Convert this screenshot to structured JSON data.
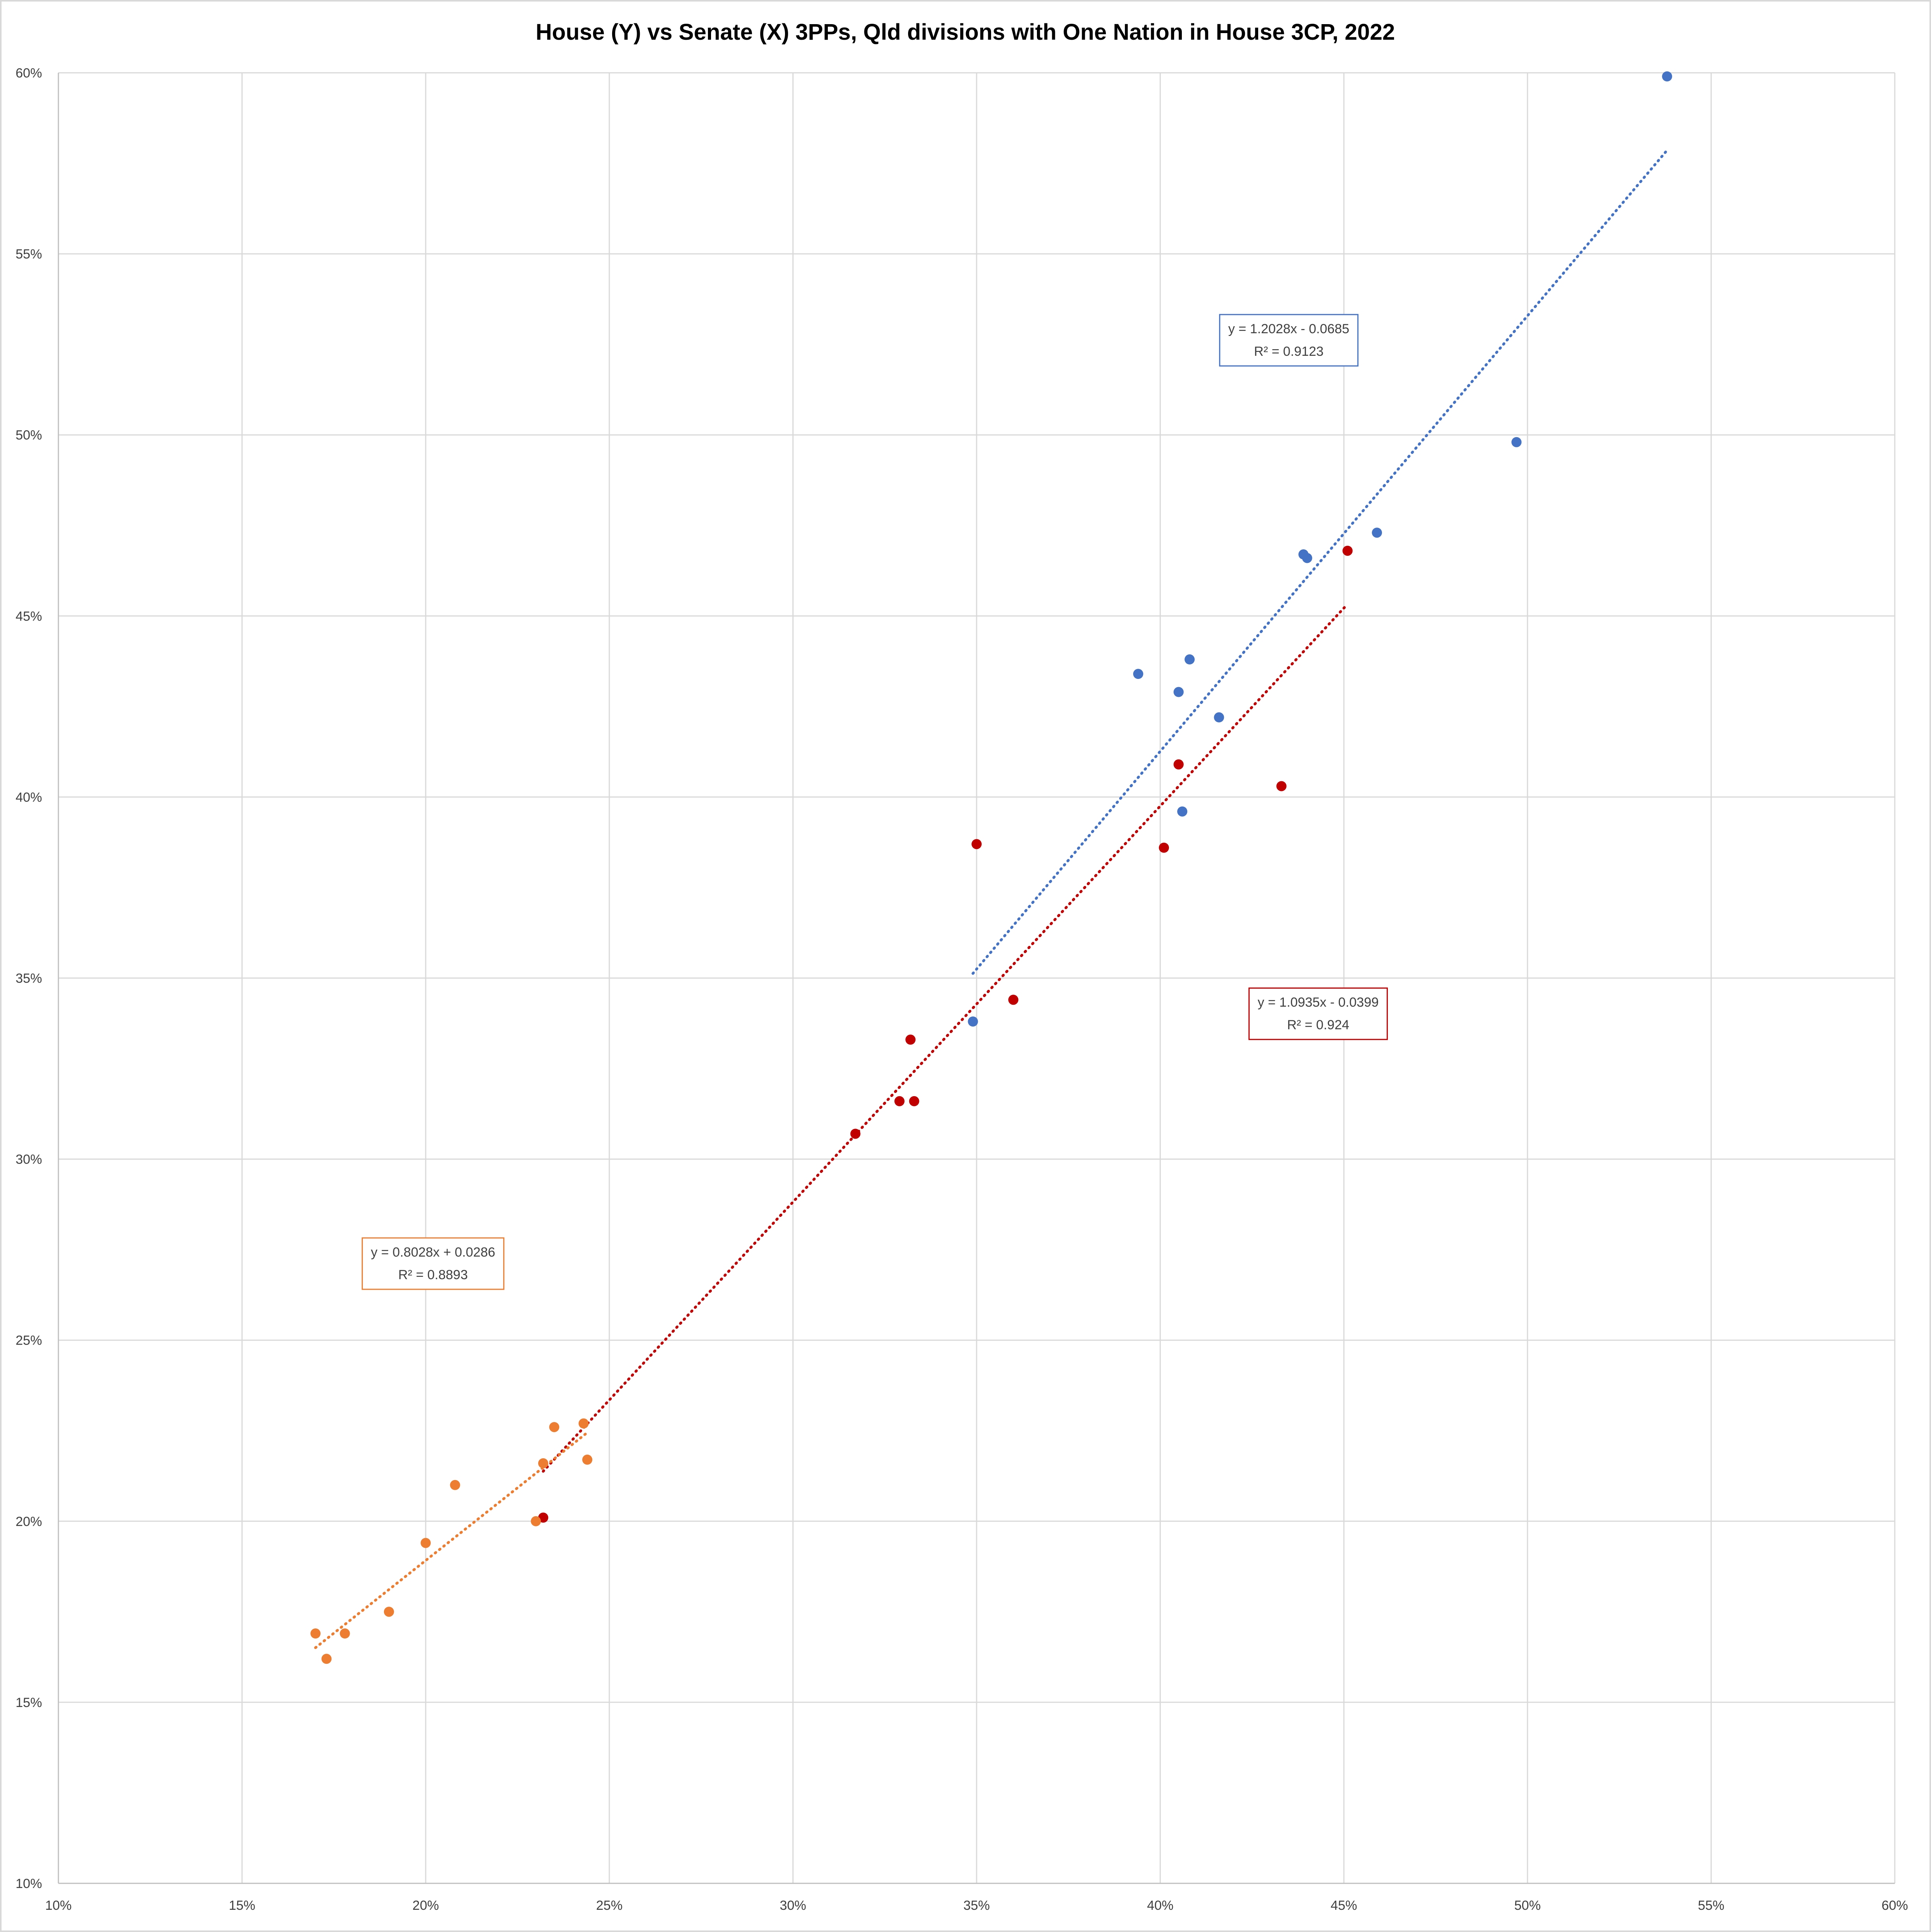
{
  "chart_data": {
    "type": "scatter",
    "title": "House (Y) vs Senate (X) 3PPs, Qld divisions with One Nation in House 3CP, 2022",
    "xlabel": "",
    "ylabel": "",
    "xlim": [
      0.1,
      0.6
    ],
    "ylim": [
      0.1,
      0.6
    ],
    "x_ticks": [
      0.1,
      0.15,
      0.2,
      0.25,
      0.3,
      0.35,
      0.4,
      0.45,
      0.5,
      0.55,
      0.6
    ],
    "y_ticks": [
      0.1,
      0.15,
      0.2,
      0.25,
      0.3,
      0.35,
      0.4,
      0.45,
      0.5,
      0.55,
      0.6
    ],
    "x_tick_labels": [
      "10%",
      "15%",
      "20%",
      "25%",
      "30%",
      "35%",
      "40%",
      "45%",
      "50%",
      "55%",
      "60%"
    ],
    "y_tick_labels": [
      "10%",
      "15%",
      "20%",
      "25%",
      "30%",
      "35%",
      "40%",
      "45%",
      "50%",
      "55%",
      "60%"
    ],
    "grid": true,
    "legend": "none",
    "series": [
      {
        "color": "#4472c4",
        "points": [
          [
            0.349,
            0.338
          ],
          [
            0.394,
            0.434
          ],
          [
            0.405,
            0.429
          ],
          [
            0.406,
            0.396
          ],
          [
            0.408,
            0.438
          ],
          [
            0.416,
            0.422
          ],
          [
            0.439,
            0.467
          ],
          [
            0.44,
            0.466
          ],
          [
            0.459,
            0.473
          ],
          [
            0.497,
            0.498
          ],
          [
            0.538,
            0.599
          ]
        ],
        "trendline": {
          "slope": 1.2028,
          "intercept": -0.0685,
          "x_range": [
            0.349,
            0.538
          ],
          "equation": "y = 1.2028x - 0.0685",
          "r2_label": "R² = 0.9123",
          "label_anchor": [
            0.435,
            0.527
          ]
        }
      },
      {
        "color": "#c00000",
        "points": [
          [
            0.232,
            0.201
          ],
          [
            0.317,
            0.307
          ],
          [
            0.329,
            0.316
          ],
          [
            0.332,
            0.333
          ],
          [
            0.333,
            0.316
          ],
          [
            0.35,
            0.387
          ],
          [
            0.36,
            0.344
          ],
          [
            0.401,
            0.386
          ],
          [
            0.405,
            0.409
          ],
          [
            0.433,
            0.403
          ],
          [
            0.451,
            0.468
          ]
        ],
        "trendline": {
          "slope": 1.0935,
          "intercept": -0.0399,
          "x_range": [
            0.232,
            0.451
          ],
          "equation": "y = 1.0935x - 0.0399",
          "r2_label": "R² = 0.924",
          "label_anchor": [
            0.443,
            0.341
          ]
        }
      },
      {
        "color": "#ed7d31",
        "points": [
          [
            0.17,
            0.169
          ],
          [
            0.173,
            0.162
          ],
          [
            0.178,
            0.169
          ],
          [
            0.19,
            0.175
          ],
          [
            0.2,
            0.194
          ],
          [
            0.208,
            0.21
          ],
          [
            0.23,
            0.2
          ],
          [
            0.232,
            0.216
          ],
          [
            0.235,
            0.226
          ],
          [
            0.243,
            0.227
          ],
          [
            0.244,
            0.217
          ]
        ],
        "trendline": {
          "slope": 0.8028,
          "intercept": 0.0286,
          "x_range": [
            0.17,
            0.244
          ],
          "equation": "y = 0.8028x + 0.0286",
          "r2_label": "R² = 0.8893",
          "label_anchor": [
            0.202,
            0.272
          ]
        }
      }
    ]
  }
}
